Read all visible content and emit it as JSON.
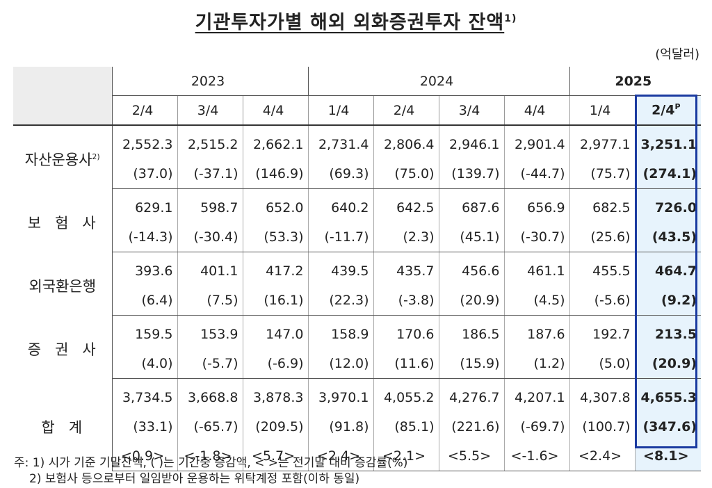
{
  "title": "기관투자가별 해외 외화증권투자 잔액",
  "title_sup": "1)",
  "unit": "(억달러)",
  "years": [
    "2023",
    "2024",
    "2025"
  ],
  "quarters": [
    "2/4",
    "3/4",
    "4/4",
    "1/4",
    "2/4",
    "3/4",
    "4/4",
    "1/4",
    "2/4"
  ],
  "quarter_last_sup": "P",
  "rows": [
    {
      "label": "자산운용사",
      "label_sup": "2)",
      "values": [
        "2,552.3",
        "2,515.2",
        "2,662.1",
        "2,731.4",
        "2,806.4",
        "2,946.1",
        "2,901.4",
        "2,977.1",
        "3,251.1"
      ],
      "changes": [
        "(37.0)",
        "(-37.1)",
        "(146.9)",
        "(69.3)",
        "(75.0)",
        "(139.7)",
        "(-44.7)",
        "(75.7)",
        "(274.1)"
      ]
    },
    {
      "label": "보험사",
      "label_sup": "",
      "values": [
        "629.1",
        "598.7",
        "652.0",
        "640.2",
        "642.5",
        "687.6",
        "656.9",
        "682.5",
        "726.0"
      ],
      "changes": [
        "(-14.3)",
        "(-30.4)",
        "(53.3)",
        "(-11.7)",
        "(2.3)",
        "(45.1)",
        "(-30.7)",
        "(25.6)",
        "(43.5)"
      ]
    },
    {
      "label": "외국환은행",
      "label_sup": "",
      "values": [
        "393.6",
        "401.1",
        "417.2",
        "439.5",
        "435.7",
        "456.6",
        "461.1",
        "455.5",
        "464.7"
      ],
      "changes": [
        "(6.4)",
        "(7.5)",
        "(16.1)",
        "(22.3)",
        "(-3.8)",
        "(20.9)",
        "(4.5)",
        "(-5.6)",
        "(9.2)"
      ]
    },
    {
      "label": "증권사",
      "label_sup": "",
      "values": [
        "159.5",
        "153.9",
        "147.0",
        "158.9",
        "170.6",
        "186.5",
        "187.6",
        "192.7",
        "213.5"
      ],
      "changes": [
        "(4.0)",
        "(-5.7)",
        "(-6.9)",
        "(12.0)",
        "(11.6)",
        "(15.9)",
        "(1.2)",
        "(5.0)",
        "(20.9)"
      ]
    },
    {
      "label": "합계",
      "label_sup": "",
      "values": [
        "3,734.5",
        "3,668.8",
        "3,878.3",
        "3,970.1",
        "4,055.2",
        "4,276.7",
        "4,207.1",
        "4,307.8",
        "4,655.3"
      ],
      "changes": [
        "(33.1)",
        "(-65.7)",
        "(209.5)",
        "(91.8)",
        "(85.1)",
        "(221.6)",
        "(-69.7)",
        "(100.7)",
        "(347.6)"
      ],
      "rates": [
        "<0.9>",
        "<-1.8>",
        "<5.7>",
        "<2.4>",
        "<2.1>",
        "<5.5>",
        "<-1.6>",
        "<2.4>",
        "<8.1>"
      ]
    }
  ],
  "notes": [
    "주: 1) 시가 기준 기말잔액, ( )는 기간중 증감액, < >는 전기말 대비 증감률(%)",
    "2) 보험사 등으로부터 일임받아 운용하는 위탁계정 포함(이하 동일)"
  ],
  "colors": {
    "highlight_bg": "#e7f3fc",
    "highlight_border": "#1a3aa0",
    "header_bg": "#ededed"
  }
}
